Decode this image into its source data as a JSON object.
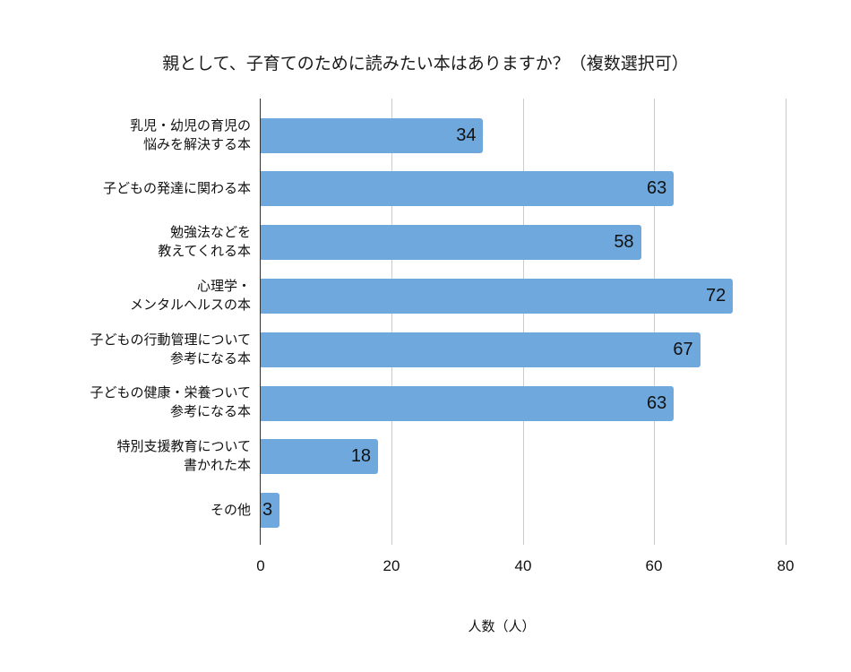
{
  "chart_data": {
    "type": "bar",
    "orientation": "horizontal",
    "title": "親として、子育てのために読みたい本はありますか？（複数選択可）",
    "xlabel": "人数（人）",
    "ylabel": "",
    "xlim": [
      0,
      80
    ],
    "x_ticks": [
      "0",
      "20",
      "40",
      "60",
      "80"
    ],
    "grid": true,
    "legend": "none",
    "bar_color": "#6fa8dc",
    "categories": [
      "乳児・幼児の育児の\n悩みを解決する本",
      "子どもの発達に関わる本",
      "勉強法などを\n教えてくれる本",
      "心理学・\nメンタルヘルスの本",
      "子どもの行動管理について\n参考になる本",
      "子どもの健康・栄養ついて\n参考になる本",
      "特別支援教育について\n書かれた本",
      "その他"
    ],
    "values": [
      34,
      63,
      58,
      72,
      67,
      63,
      18,
      3
    ]
  }
}
